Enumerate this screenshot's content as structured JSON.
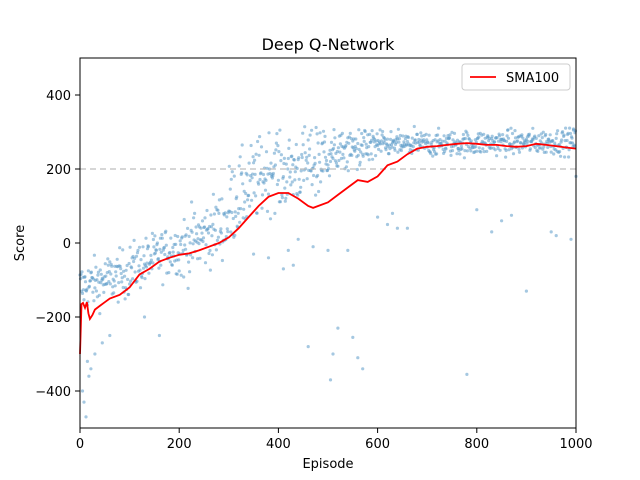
{
  "chart_data": {
    "type": "scatter",
    "title": "Deep Q-Network",
    "xlabel": "Episode",
    "ylabel": "Score",
    "xlim": [
      0,
      1000
    ],
    "ylim": [
      -500,
      500
    ],
    "x_ticks": [
      0,
      200,
      400,
      600,
      800,
      1000
    ],
    "y_ticks": [
      -400,
      -200,
      0,
      200,
      400
    ],
    "grid": false,
    "legend_position": "top-right",
    "reference_line": {
      "y": 200,
      "style": "dashed",
      "color": "#bdbdbd"
    },
    "scatter_color": "#5b9bc8",
    "series": [
      {
        "name": "SMA100",
        "type": "line",
        "color": "#ff0000",
        "points": [
          [
            0,
            -300
          ],
          [
            3,
            -165
          ],
          [
            6,
            -162
          ],
          [
            10,
            -175
          ],
          [
            14,
            -160
          ],
          [
            17,
            -190
          ],
          [
            20,
            -205
          ],
          [
            25,
            -195
          ],
          [
            30,
            -180
          ],
          [
            40,
            -170
          ],
          [
            50,
            -160
          ],
          [
            60,
            -150
          ],
          [
            80,
            -140
          ],
          [
            100,
            -120
          ],
          [
            120,
            -85
          ],
          [
            140,
            -70
          ],
          [
            160,
            -50
          ],
          [
            180,
            -40
          ],
          [
            200,
            -32
          ],
          [
            220,
            -28
          ],
          [
            240,
            -20
          ],
          [
            260,
            -10
          ],
          [
            280,
            0
          ],
          [
            300,
            15
          ],
          [
            320,
            40
          ],
          [
            340,
            70
          ],
          [
            360,
            100
          ],
          [
            380,
            125
          ],
          [
            400,
            135
          ],
          [
            420,
            135
          ],
          [
            440,
            120
          ],
          [
            460,
            100
          ],
          [
            470,
            95
          ],
          [
            480,
            100
          ],
          [
            500,
            110
          ],
          [
            520,
            130
          ],
          [
            540,
            150
          ],
          [
            560,
            170
          ],
          [
            580,
            165
          ],
          [
            600,
            180
          ],
          [
            620,
            210
          ],
          [
            640,
            220
          ],
          [
            660,
            240
          ],
          [
            680,
            255
          ],
          [
            700,
            260
          ],
          [
            720,
            262
          ],
          [
            740,
            265
          ],
          [
            760,
            268
          ],
          [
            780,
            270
          ],
          [
            800,
            268
          ],
          [
            820,
            265
          ],
          [
            840,
            265
          ],
          [
            860,
            262
          ],
          [
            880,
            260
          ],
          [
            900,
            262
          ],
          [
            920,
            268
          ],
          [
            940,
            265
          ],
          [
            960,
            262
          ],
          [
            980,
            258
          ],
          [
            1000,
            255
          ]
        ]
      }
    ],
    "scatter_bands": [
      {
        "x": [
          0,
          100
        ],
        "center_start": -120,
        "center_end": -80,
        "spread": 55
      },
      {
        "x": [
          100,
          200
        ],
        "center_start": -70,
        "center_end": -10,
        "spread": 55
      },
      {
        "x": [
          200,
          300
        ],
        "center_start": -20,
        "center_end": 60,
        "spread": 75
      },
      {
        "x": [
          300,
          400
        ],
        "center_start": 100,
        "center_end": 220,
        "spread": 90
      },
      {
        "x": [
          400,
          500
        ],
        "center_start": 180,
        "center_end": 240,
        "spread": 80
      },
      {
        "x": [
          500,
          600
        ],
        "center_start": 240,
        "center_end": 265,
        "spread": 45
      },
      {
        "x": [
          600,
          1000
        ],
        "center_start": 265,
        "center_end": 275,
        "spread": 28
      }
    ],
    "scatter_outliers": [
      [
        5,
        -400
      ],
      [
        8,
        -430
      ],
      [
        12,
        -470
      ],
      [
        18,
        -360
      ],
      [
        22,
        -340
      ],
      [
        15,
        -320
      ],
      [
        30,
        -300
      ],
      [
        45,
        -270
      ],
      [
        60,
        -250
      ],
      [
        160,
        -250
      ],
      [
        130,
        -200
      ],
      [
        350,
        -30
      ],
      [
        380,
        -40
      ],
      [
        410,
        -70
      ],
      [
        430,
        -60
      ],
      [
        420,
        -20
      ],
      [
        440,
        10
      ],
      [
        470,
        -10
      ],
      [
        500,
        -20
      ],
      [
        505,
        -370
      ],
      [
        460,
        -280
      ],
      [
        510,
        -300
      ],
      [
        550,
        -255
      ],
      [
        560,
        -310
      ],
      [
        570,
        -340
      ],
      [
        520,
        -230
      ],
      [
        540,
        -20
      ],
      [
        600,
        70
      ],
      [
        630,
        80
      ],
      [
        640,
        40
      ],
      [
        620,
        50
      ],
      [
        660,
        40
      ],
      [
        780,
        -355
      ],
      [
        800,
        90
      ],
      [
        830,
        30
      ],
      [
        850,
        60
      ],
      [
        870,
        75
      ],
      [
        900,
        -130
      ],
      [
        950,
        30
      ],
      [
        960,
        20
      ],
      [
        990,
        10
      ],
      [
        995,
        305
      ],
      [
        1000,
        180
      ]
    ]
  }
}
